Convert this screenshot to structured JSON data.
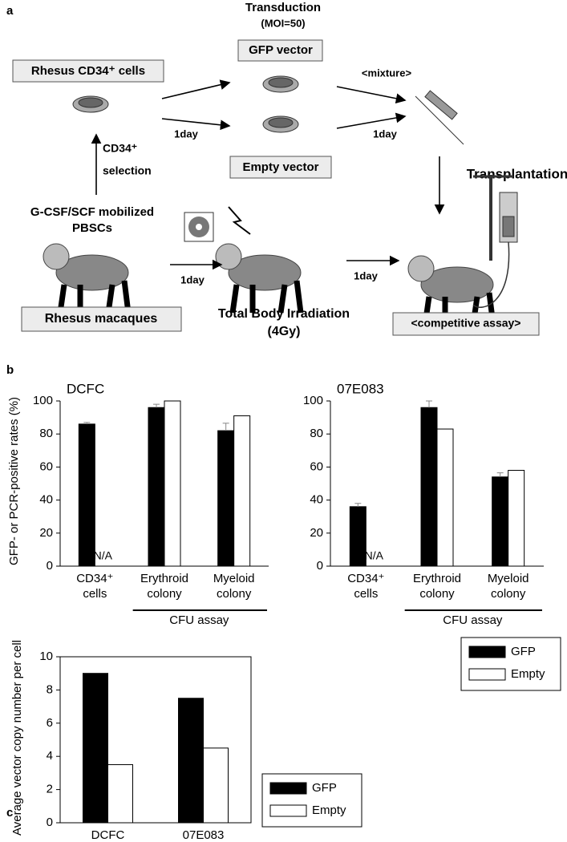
{
  "diagram": {
    "panel_label": "a",
    "transduction": [
      "Transduction",
      "(MOI=50)"
    ],
    "gfp_vector": "GFP vector",
    "rhesus_cd34": "Rhesus CD34⁺ cells",
    "mixture": "<mixture>",
    "day_labels": [
      "1day",
      "1day",
      "1day",
      "1day"
    ],
    "selection": [
      "CD34⁺",
      "selection"
    ],
    "empty_vector": "Empty vector",
    "transplantation": "Transplantation",
    "source": [
      "G-CSF/SCF mobilized",
      "PBSCs"
    ],
    "macaques": "Rhesus macaques",
    "irradiation": [
      "Total Body Irradiation",
      "(4Gy)"
    ],
    "assay": "<competitive assay>"
  },
  "chart_data": [
    {
      "type": "bar",
      "panel_label": "b",
      "title": "DCFC",
      "y_label": "GFP- or PCR-positive rates (%)",
      "categories": [
        "CD34⁺ cells",
        "Erythroid colony",
        "Myeloid colony"
      ],
      "series": [
        {
          "name": "GFP",
          "color": "#000000",
          "values": [
            86,
            96,
            82
          ],
          "errors": [
            1,
            2,
            4.5
          ]
        },
        {
          "name": "Empty",
          "color": "#ffffff",
          "values": [
            null,
            100,
            91
          ]
        }
      ],
      "na_label": "N/A",
      "group_label": "CFU assay",
      "ylim": [
        0,
        100
      ],
      "yticks": [
        0,
        20,
        40,
        60,
        80,
        100
      ]
    },
    {
      "type": "bar",
      "title": "07E083",
      "categories": [
        "CD34⁺ cells",
        "Erythroid colony",
        "Myeloid colony"
      ],
      "series": [
        {
          "name": "GFP",
          "color": "#000000",
          "values": [
            36,
            96,
            54
          ],
          "errors": [
            2,
            4,
            2.5
          ]
        },
        {
          "name": "Empty",
          "color": "#ffffff",
          "values": [
            null,
            83,
            58
          ]
        }
      ],
      "na_label": "N/A",
      "group_label": "CFU assay",
      "ylim": [
        0,
        100
      ],
      "yticks": [
        0,
        20,
        40,
        60,
        80,
        100
      ]
    },
    {
      "type": "bar",
      "panel_label": "c",
      "y_label": "Average vector copy number per cell",
      "categories": [
        "DCFC",
        "07E083"
      ],
      "series": [
        {
          "name": "GFP",
          "color": "#000000",
          "values": [
            9,
            7.5
          ]
        },
        {
          "name": "Empty",
          "color": "#ffffff",
          "values": [
            3.5,
            4.5
          ]
        }
      ],
      "ylim": [
        0,
        10
      ],
      "yticks": [
        0,
        2,
        4,
        6,
        8,
        10
      ],
      "legend": [
        "right",
        "bottom-right"
      ]
    }
  ]
}
